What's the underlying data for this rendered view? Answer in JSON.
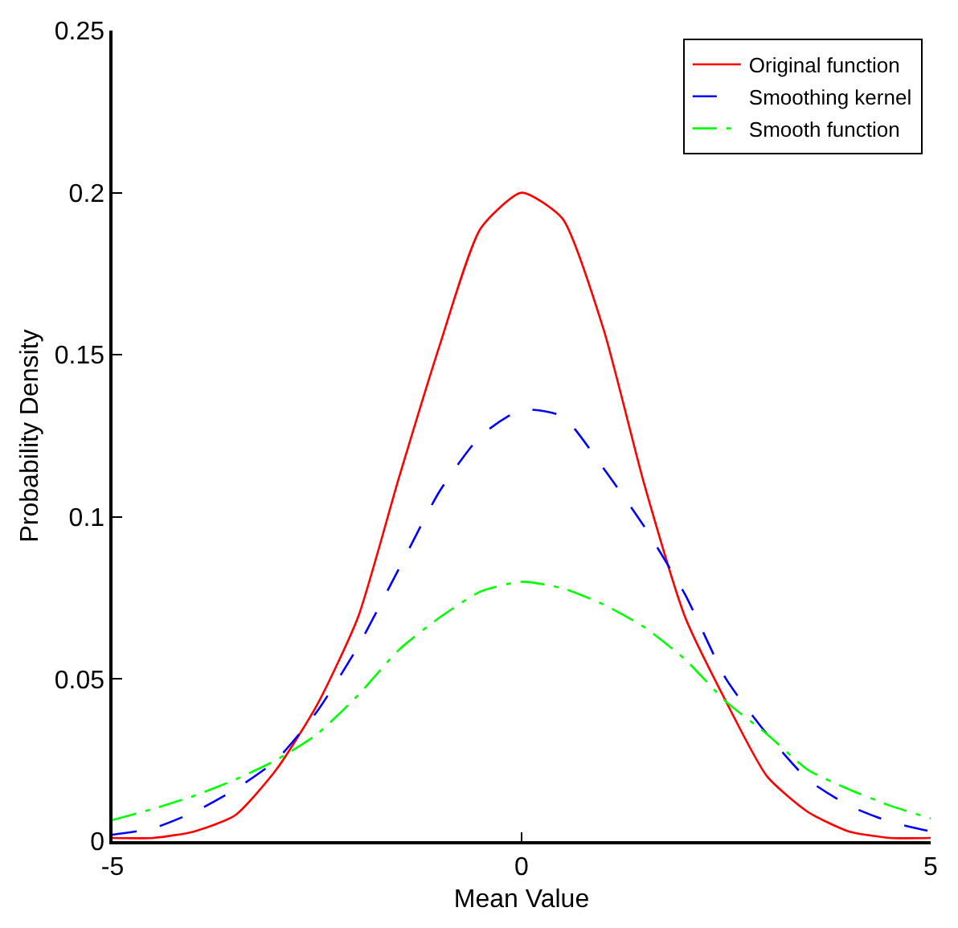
{
  "chart_data": {
    "type": "line",
    "xlabel": "Mean Value",
    "ylabel": "Probability Density",
    "x": [
      -5,
      -4.5,
      -4,
      -3.5,
      -3,
      -2.5,
      -2,
      -1.5,
      -1,
      -0.5,
      0,
      0.5,
      1,
      1.5,
      2,
      2.5,
      3,
      3.5,
      4,
      4.5,
      5
    ],
    "series": [
      {
        "name": "Original function",
        "color": "#ff0000",
        "line_style": "solid",
        "values": [
          0.001,
          0.001,
          0.003,
          0.008,
          0.022,
          0.042,
          0.069,
          0.112,
          0.153,
          0.189,
          0.2,
          0.192,
          0.158,
          0.11,
          0.069,
          0.043,
          0.02,
          0.009,
          0.003,
          0.001,
          0.001
        ]
      },
      {
        "name": "Smoothing kernel",
        "color": "#0000ff",
        "line_style": "dashed",
        "values": [
          0.002,
          0.004,
          0.009,
          0.016,
          0.025,
          0.04,
          0.06,
          0.084,
          0.108,
          0.125,
          0.133,
          0.131,
          0.115,
          0.097,
          0.076,
          0.05,
          0.033,
          0.019,
          0.011,
          0.006,
          0.003
        ]
      },
      {
        "name": "Smooth function",
        "color": "#00ff00",
        "line_style": "dashdot",
        "values": [
          0.0065,
          0.01,
          0.014,
          0.019,
          0.025,
          0.033,
          0.045,
          0.059,
          0.069,
          0.077,
          0.08,
          0.078,
          0.073,
          0.066,
          0.056,
          0.043,
          0.033,
          0.022,
          0.016,
          0.011,
          0.007
        ]
      }
    ],
    "xlim": [
      -5,
      5
    ],
    "xticks": [
      -5,
      0,
      5
    ],
    "ylim": [
      0,
      0.25
    ],
    "yticks": [
      0,
      0.05,
      0.1,
      0.15,
      0.2,
      0.25
    ],
    "legend": "top right",
    "marker": "none"
  }
}
